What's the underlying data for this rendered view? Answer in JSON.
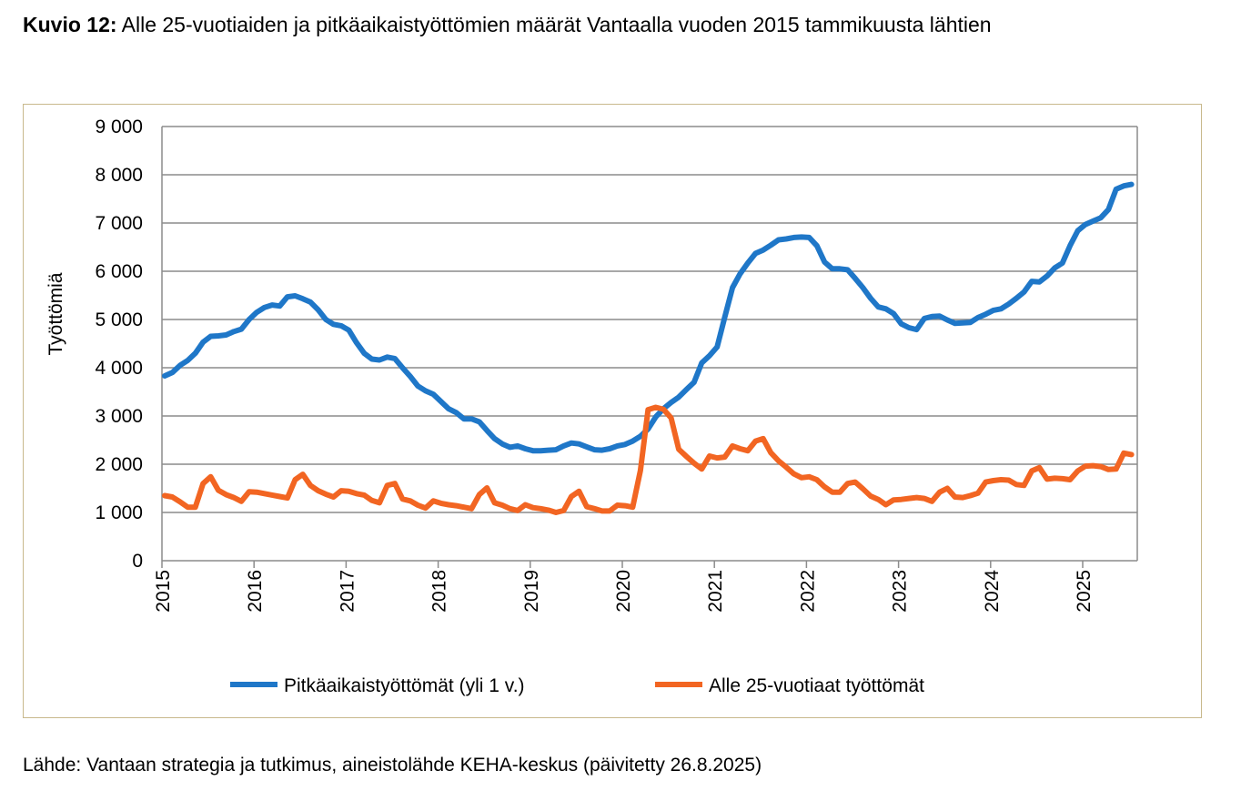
{
  "title": {
    "prefix": "Kuvio 12:",
    "text": " Alle 25-vuotiaiden ja pitkäaikaistyöttömien määrät Vantaalla vuoden 2015 tammikuusta lähtien"
  },
  "source": "Lähde: Vantaan strategia ja tutkimus, aineistolähde KEHA-keskus (päivitetty 26.8.2025)",
  "chart_data": {
    "type": "line",
    "title": "",
    "xlabel": "",
    "ylabel": "Työttömiä",
    "ylim": [
      0,
      9000
    ],
    "yticks": [
      0,
      1000,
      2000,
      3000,
      4000,
      5000,
      6000,
      7000,
      8000,
      9000
    ],
    "ytick_labels": [
      "0",
      "1 000",
      "2 000",
      "3 000",
      "4 000",
      "5 000",
      "6 000",
      "7 000",
      "8 000",
      "9 000"
    ],
    "xtick_labels": [
      "2015",
      "2016",
      "2017",
      "2018",
      "2019",
      "2020",
      "2021",
      "2022",
      "2023",
      "2024",
      "2025"
    ],
    "x_start": "2015-01",
    "x_frequency": "monthly",
    "grid": "horizontal",
    "legend_position": "bottom",
    "series": [
      {
        "name": "Pitkäaikaistyöttömät (yli 1 v.)",
        "color": "#1f77c8",
        "values": [
          3830,
          3900,
          4050,
          4150,
          4300,
          4530,
          4650,
          4660,
          4680,
          4750,
          4800,
          5000,
          5150,
          5250,
          5300,
          5280,
          5470,
          5490,
          5430,
          5360,
          5200,
          5000,
          4900,
          4870,
          4780,
          4520,
          4300,
          4180,
          4160,
          4220,
          4190,
          4000,
          3820,
          3620,
          3520,
          3450,
          3300,
          3150,
          3070,
          2940,
          2940,
          2880,
          2700,
          2530,
          2420,
          2350,
          2380,
          2320,
          2280,
          2280,
          2290,
          2300,
          2380,
          2440,
          2420,
          2360,
          2300,
          2290,
          2320,
          2380,
          2410,
          2480,
          2580,
          2730,
          2980,
          3150,
          3280,
          3390,
          3550,
          3700,
          4100,
          4250,
          4430,
          5050,
          5660,
          5950,
          6170,
          6370,
          6440,
          6540,
          6650,
          6670,
          6700,
          6710,
          6700,
          6530,
          6190,
          6050,
          6050,
          6030,
          5850,
          5660,
          5440,
          5260,
          5220,
          5120,
          4910,
          4830,
          4790,
          5020,
          5060,
          5070,
          4990,
          4920,
          4930,
          4940,
          5040,
          5110,
          5190,
          5220,
          5320,
          5440,
          5570,
          5790,
          5780,
          5900,
          6070,
          6170,
          6530,
          6840,
          6970,
          7040,
          7110,
          7280,
          7700,
          7770,
          7800
        ]
      },
      {
        "name": "Alle 25-vuotiaat työttömät",
        "color": "#f26522",
        "values": [
          1350,
          1320,
          1220,
          1110,
          1110,
          1600,
          1740,
          1460,
          1370,
          1310,
          1230,
          1430,
          1420,
          1390,
          1360,
          1330,
          1300,
          1680,
          1790,
          1560,
          1450,
          1380,
          1320,
          1450,
          1440,
          1390,
          1360,
          1250,
          1200,
          1560,
          1600,
          1280,
          1240,
          1150,
          1090,
          1240,
          1190,
          1160,
          1140,
          1110,
          1080,
          1370,
          1510,
          1200,
          1150,
          1080,
          1040,
          1160,
          1100,
          1080,
          1050,
          1000,
          1040,
          1330,
          1440,
          1120,
          1080,
          1030,
          1030,
          1150,
          1140,
          1110,
          1870,
          3130,
          3180,
          3140,
          2960,
          2310,
          2160,
          2020,
          1900,
          2170,
          2130,
          2150,
          2380,
          2320,
          2280,
          2480,
          2530,
          2240,
          2070,
          1940,
          1800,
          1720,
          1740,
          1680,
          1530,
          1420,
          1420,
          1600,
          1630,
          1490,
          1340,
          1270,
          1160,
          1260,
          1270,
          1290,
          1310,
          1290,
          1230,
          1420,
          1500,
          1320,
          1310,
          1350,
          1400,
          1630,
          1660,
          1680,
          1670,
          1580,
          1560,
          1860,
          1930,
          1690,
          1710,
          1700,
          1680,
          1860,
          1960,
          1970,
          1950,
          1890,
          1900,
          2230,
          2200
        ]
      }
    ]
  }
}
